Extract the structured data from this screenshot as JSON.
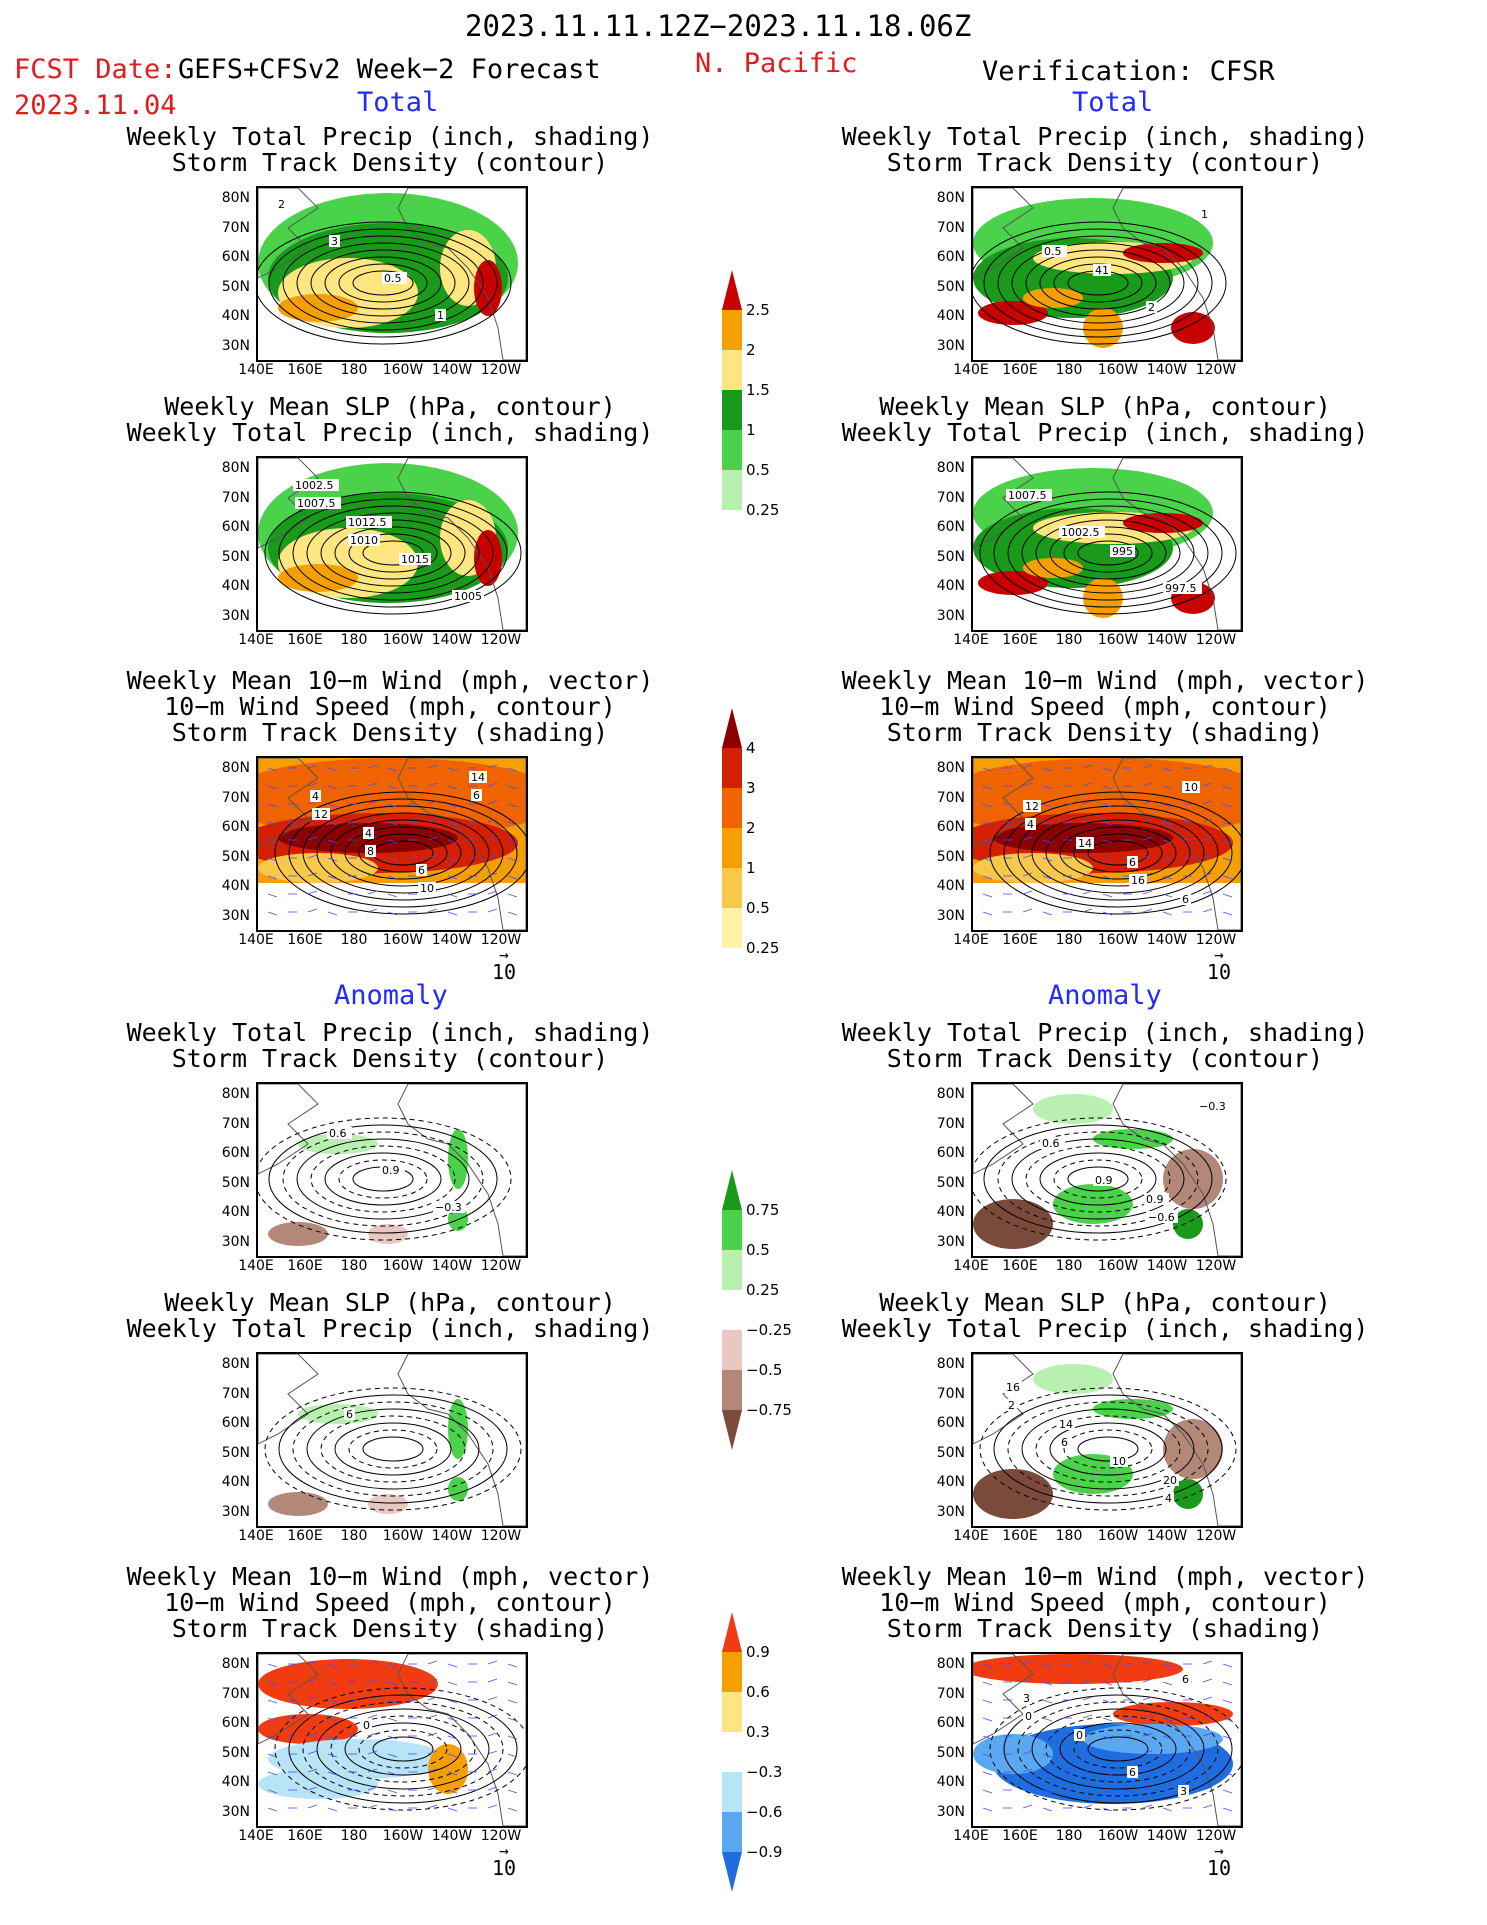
{
  "header": {
    "title": "2023.11.11.12Z−2023.11.18.06Z",
    "fcst_label": "FCST Date:",
    "fcst_model": "GEFS+CFSv2 Week−2 Forecast",
    "fcst_date": "2023.11.04",
    "region": "N. Pacific",
    "verification": "Verification: CFSR"
  },
  "sections": {
    "total": "Total",
    "anomaly": "Anomaly"
  },
  "panel_titles": {
    "precip_storm": [
      "Weekly Total Precip (inch, shading)",
      "Storm Track Density (contour)"
    ],
    "slp_precip": [
      "Weekly Mean SLP (hPa, contour)",
      "Weekly Total Precip (inch, shading)"
    ],
    "wind_storm": [
      "Weekly Mean 10−m Wind (mph, vector)",
      "10−m Wind Speed (mph, contour)",
      "Storm Track Density (shading)"
    ]
  },
  "axes": {
    "lat": [
      "80N",
      "70N",
      "60N",
      "50N",
      "40N",
      "30N"
    ],
    "lon": [
      "140E",
      "160E",
      "180",
      "160W",
      "140W",
      "120W"
    ]
  },
  "vector_ref": "10",
  "colorbars": {
    "precip_total": {
      "ticks": [
        "2.5",
        "2",
        "1.5",
        "1",
        "0.5",
        "0.25"
      ],
      "colors": [
        "#c80000",
        "#f5a000",
        "#ffe680",
        "#1a9a1a",
        "#4ad24a",
        "#b8f0b0"
      ]
    },
    "storm_total": {
      "ticks": [
        "4",
        "3",
        "2",
        "1",
        "0.5",
        "0.25"
      ],
      "colors": [
        "#8b0000",
        "#d42000",
        "#f06400",
        "#f5a000",
        "#f7c84a",
        "#fff3a8"
      ]
    },
    "precip_anom": {
      "ticks": [
        "0.75",
        "0.5",
        "0.25",
        "−0.25",
        "−0.5",
        "−0.75"
      ],
      "colors": [
        "#1a9a1a",
        "#4ad24a",
        "#b8f0b0",
        "#ffffff",
        "#e8c8c0",
        "#b48878",
        "#7a4a3a"
      ]
    },
    "storm_anom": {
      "ticks": [
        "0.9",
        "0.6",
        "0.3",
        "−0.3",
        "−0.6",
        "−0.9"
      ],
      "colors": [
        "#f03c10",
        "#f5a000",
        "#ffe680",
        "#ffffff",
        "#b8e4f8",
        "#5aa8f0",
        "#1e6ee0"
      ]
    }
  },
  "contour_labels": {
    "f1": [
      "2",
      "3",
      "0.5",
      "1"
    ],
    "f2": [
      "1002.5",
      "1012.5",
      "1015",
      "1005",
      "1007.5",
      "1010"
    ],
    "f3": [
      "4",
      "4",
      "6",
      "14",
      "12",
      "8",
      "10",
      "6"
    ],
    "f4": [
      "0.6",
      "0.9",
      "−0.3"
    ],
    "f5": [
      "6"
    ],
    "f6": [
      "0"
    ],
    "v1": [
      "41",
      "2",
      "1",
      "0.5"
    ],
    "v2": [
      "995",
      "997.5",
      "1007.5",
      "1002.5"
    ],
    "v3": [
      "6",
      "6",
      "12",
      "14",
      "16",
      "10",
      "4"
    ],
    "v4": [
      "0.9",
      "−0.3",
      "0.6",
      "0.9",
      "−0.6"
    ],
    "v5": [
      "20",
      "16",
      "14",
      "10",
      "4",
      "2",
      "6"
    ],
    "v6": [
      "3",
      "3",
      "0",
      "6",
      "6",
      "0"
    ]
  },
  "colors": {
    "title_red": "#e31b1b",
    "section_blue": "#1f2bff"
  }
}
